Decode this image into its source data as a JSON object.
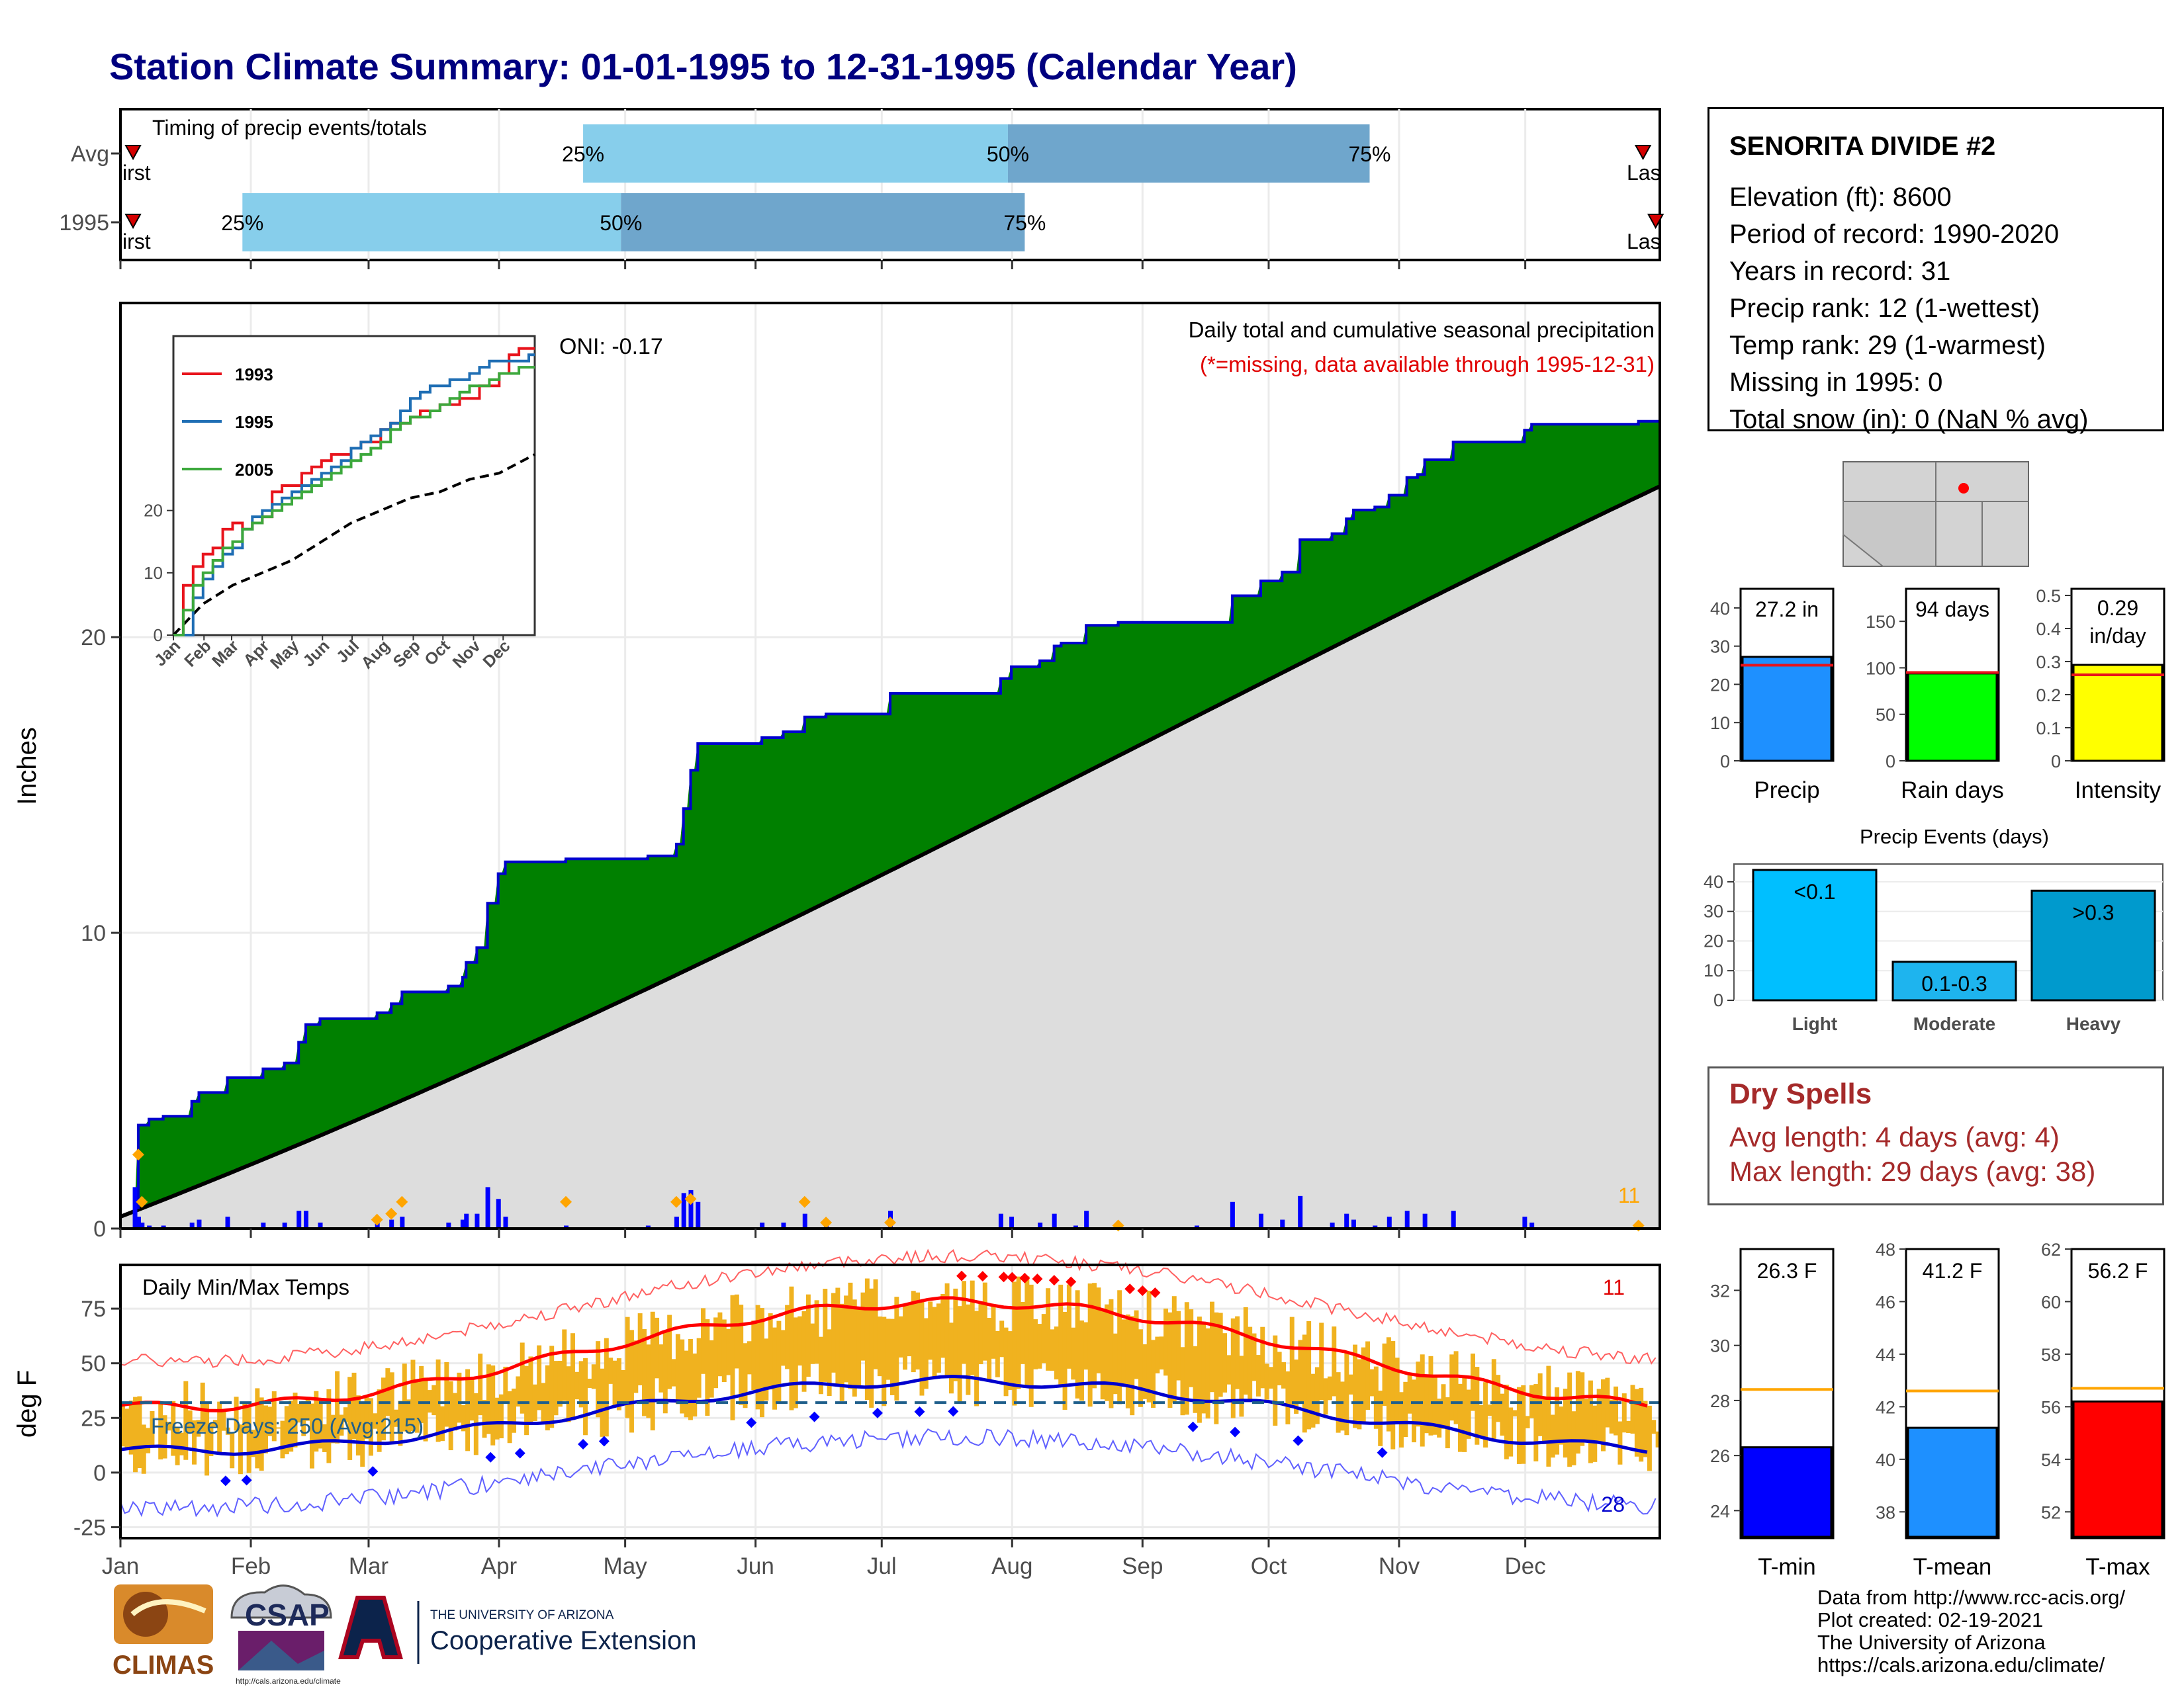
{
  "title": "Station Climate Summary: 01-01-1995 to 12-31-1995 (Calendar Year)",
  "colors": {
    "title": "#00007f",
    "timing_light": "#87ceeb",
    "timing_dark": "#6fa6cc",
    "cum_fill": "#008000",
    "normal_fill": "#dddddd",
    "cum_line": "#0000cd",
    "bar_blue": "#0000ff",
    "orange": "#ffa500",
    "temp_bar": "#f0b21f",
    "tmax_line": "#ff0000",
    "tmin_line": "#0000cd",
    "precip_bar": "#1e90ff",
    "raindays_bar": "#00ff00",
    "intensity_bar": "#ffff00",
    "light_bar": "#00bfff",
    "moderate_bar": "#1eb4ee",
    "heavy_bar": "#009acd",
    "tmin_bar": "#0000ff",
    "tmean_bar": "#1e90ff",
    "tmax_bar": "#ff0000",
    "avg_line_red": "#e8141c",
    "avg_line_orange": "#ffa500",
    "dry_text": "#a52a2a"
  },
  "timing": {
    "label": "Timing of precip events/totals",
    "rows": [
      {
        "label": "Avg",
        "p25": 110,
        "p50": 211,
        "p75": 297,
        "first_label": "First",
        "last_label": "Last",
        "first": 3,
        "last": 362
      },
      {
        "label": "1995",
        "p25": 29,
        "p50": 119,
        "p75": 215,
        "first_label": "First",
        "last_label": "Last",
        "first": 3,
        "last": 365
      }
    ],
    "pct_labels": [
      "25%",
      "50%",
      "75%"
    ]
  },
  "precip_chart": {
    "ylabel": "Inches",
    "yticks": [
      0,
      10,
      20
    ],
    "ylim": [
      0,
      30
    ],
    "oni_label": "ONI: -0.17",
    "subtitle": "Daily total and cumulative seasonal precipitation",
    "missing_note": "(*=missing, data available through 1995-12-31)",
    "corner_count": "11",
    "cumulative_1995": [
      [
        0,
        0
      ],
      [
        4,
        0.7
      ],
      [
        5,
        3.5
      ],
      [
        8,
        3.7
      ],
      [
        12,
        3.8
      ],
      [
        20,
        4.3
      ],
      [
        22,
        4.6
      ],
      [
        28,
        4.6
      ],
      [
        30,
        5.1
      ],
      [
        40,
        5.4
      ],
      [
        46,
        5.6
      ],
      [
        50,
        6.3
      ],
      [
        52,
        6.9
      ],
      [
        56,
        7.1
      ],
      [
        64,
        7.1
      ],
      [
        70,
        7.1
      ],
      [
        72,
        7.3
      ],
      [
        76,
        7.6
      ],
      [
        79,
        8.0
      ],
      [
        92,
        8.2
      ],
      [
        96,
        8.5
      ],
      [
        97,
        9.0
      ],
      [
        100,
        9.5
      ],
      [
        103,
        11.0
      ],
      [
        106,
        12.0
      ],
      [
        108,
        12.4
      ],
      [
        125,
        12.5
      ],
      [
        148,
        12.6
      ],
      [
        155,
        12.6
      ],
      [
        156,
        13.0
      ],
      [
        158,
        14.2
      ],
      [
        160,
        15.5
      ],
      [
        162,
        16.4
      ],
      [
        170,
        16.4
      ],
      [
        180,
        16.6
      ],
      [
        186,
        16.8
      ],
      [
        192,
        17.3
      ],
      [
        198,
        17.4
      ],
      [
        200,
        17.4
      ],
      [
        216,
        18.1
      ],
      [
        244,
        18.1
      ],
      [
        247,
        18.6
      ],
      [
        250,
        19.0
      ],
      [
        258,
        19.2
      ],
      [
        262,
        19.7
      ],
      [
        264,
        19.8
      ],
      [
        268,
        19.8
      ],
      [
        271,
        20.4
      ],
      [
        280,
        20.5
      ],
      [
        302,
        20.5
      ],
      [
        312,
        21.4
      ],
      [
        320,
        21.9
      ],
      [
        326,
        22.2
      ],
      [
        331,
        23.3
      ],
      [
        340,
        23.5
      ],
      [
        344,
        24.0
      ],
      [
        346,
        24.3
      ],
      [
        352,
        24.4
      ],
      [
        356,
        24.8
      ],
      [
        361,
        25.4
      ],
      [
        364,
        25.5
      ],
      [
        366,
        26.0
      ],
      [
        372,
        26.0
      ],
      [
        374,
        26.6
      ],
      [
        378,
        26.6
      ],
      [
        392,
        26.6
      ],
      [
        394,
        27.0
      ],
      [
        396,
        27.2
      ],
      [
        424,
        27.2
      ],
      [
        426,
        27.3
      ],
      [
        432,
        27.3
      ]
    ],
    "normal_start": 0.4,
    "normal_end": 25.1,
    "daily_events": [
      [
        4,
        1.4
      ],
      [
        5,
        0.4
      ],
      [
        6,
        0.2
      ],
      [
        8,
        0.1
      ],
      [
        12,
        0.1
      ],
      [
        20,
        0.2
      ],
      [
        22,
        0.3
      ],
      [
        30,
        0.4
      ],
      [
        40,
        0.2
      ],
      [
        46,
        0.2
      ],
      [
        50,
        0.6
      ],
      [
        52,
        0.6
      ],
      [
        56,
        0.2
      ],
      [
        72,
        0.2
      ],
      [
        76,
        0.3
      ],
      [
        79,
        0.4
      ],
      [
        92,
        0.2
      ],
      [
        96,
        0.3
      ],
      [
        97,
        0.5
      ],
      [
        100,
        0.5
      ],
      [
        103,
        1.4
      ],
      [
        106,
        1.0
      ],
      [
        108,
        0.4
      ],
      [
        125,
        0.1
      ],
      [
        148,
        0.1
      ],
      [
        156,
        0.4
      ],
      [
        158,
        1.2
      ],
      [
        160,
        1.3
      ],
      [
        162,
        0.9
      ],
      [
        180,
        0.2
      ],
      [
        186,
        0.2
      ],
      [
        192,
        0.5
      ],
      [
        198,
        0.1
      ],
      [
        216,
        0.6
      ],
      [
        247,
        0.5
      ],
      [
        250,
        0.4
      ],
      [
        258,
        0.2
      ],
      [
        262,
        0.5
      ],
      [
        268,
        0.1
      ],
      [
        271,
        0.6
      ],
      [
        280,
        0.1
      ],
      [
        302,
        0.1
      ],
      [
        312,
        0.9
      ],
      [
        320,
        0.5
      ],
      [
        326,
        0.3
      ],
      [
        331,
        1.1
      ],
      [
        340,
        0.2
      ],
      [
        344,
        0.5
      ],
      [
        346,
        0.3
      ],
      [
        352,
        0.1
      ],
      [
        356,
        0.4
      ],
      [
        361,
        0.6
      ],
      [
        366,
        0.5
      ],
      [
        374,
        0.6
      ],
      [
        394,
        0.4
      ],
      [
        396,
        0.2
      ],
      [
        426,
        0.1
      ]
    ],
    "orange_markers": [
      [
        5,
        2.5
      ],
      [
        6,
        0.9
      ],
      [
        72,
        0.3
      ],
      [
        76,
        0.5
      ],
      [
        79,
        0.9
      ],
      [
        125,
        0.9
      ],
      [
        156,
        0.9
      ],
      [
        160,
        1.0
      ],
      [
        192,
        0.9
      ],
      [
        198,
        0.2
      ],
      [
        216,
        0.2
      ],
      [
        280,
        0.1
      ],
      [
        426,
        0.1
      ]
    ],
    "inset": {
      "series": [
        {
          "name": "1993",
          "color": "#e8141c",
          "values": [
            [
              0,
              0
            ],
            [
              10,
              8
            ],
            [
              20,
              11
            ],
            [
              30,
              13
            ],
            [
              40,
              14
            ],
            [
              50,
              17
            ],
            [
              60,
              18
            ],
            [
              70,
              17
            ],
            [
              80,
              18
            ],
            [
              90,
              19
            ],
            [
              100,
              23
            ],
            [
              110,
              24
            ],
            [
              120,
              24
            ],
            [
              130,
              26
            ],
            [
              140,
              27
            ],
            [
              150,
              28
            ],
            [
              160,
              29
            ],
            [
              170,
              29
            ],
            [
              180,
              30
            ],
            [
              190,
              31
            ],
            [
              200,
              31
            ],
            [
              210,
              33
            ],
            [
              220,
              34
            ],
            [
              230,
              34
            ],
            [
              240,
              35
            ],
            [
              250,
              36
            ],
            [
              260,
              36
            ],
            [
              270,
              37
            ],
            [
              280,
              37
            ],
            [
              290,
              38
            ],
            [
              300,
              38
            ],
            [
              310,
              40
            ],
            [
              320,
              40
            ],
            [
              330,
              42
            ],
            [
              340,
              45
            ],
            [
              350,
              46
            ],
            [
              360,
              46
            ],
            [
              366,
              46
            ]
          ]
        },
        {
          "name": "1995",
          "color": "#1f6eb4",
          "values": [
            [
              0,
              0
            ],
            [
              20,
              6
            ],
            [
              30,
              9
            ],
            [
              40,
              11
            ],
            [
              50,
              13
            ],
            [
              60,
              14
            ],
            [
              70,
              17
            ],
            [
              80,
              19
            ],
            [
              90,
              20
            ],
            [
              100,
              21
            ],
            [
              110,
              22
            ],
            [
              120,
              23
            ],
            [
              130,
              24
            ],
            [
              140,
              25
            ],
            [
              150,
              26
            ],
            [
              160,
              27
            ],
            [
              170,
              28
            ],
            [
              180,
              30
            ],
            [
              190,
              31
            ],
            [
              200,
              32
            ],
            [
              210,
              33
            ],
            [
              220,
              34
            ],
            [
              230,
              36
            ],
            [
              240,
              38
            ],
            [
              250,
              39
            ],
            [
              260,
              40
            ],
            [
              270,
              40
            ],
            [
              280,
              41
            ],
            [
              290,
              41
            ],
            [
              300,
              42
            ],
            [
              310,
              43
            ],
            [
              320,
              44
            ],
            [
              330,
              44
            ],
            [
              340,
              44
            ],
            [
              350,
              44
            ],
            [
              360,
              45
            ],
            [
              366,
              45
            ]
          ]
        },
        {
          "name": "2005",
          "color": "#3ca83c",
          "values": [
            [
              0,
              0
            ],
            [
              10,
              4
            ],
            [
              20,
              8
            ],
            [
              30,
              10
            ],
            [
              40,
              12
            ],
            [
              50,
              14
            ],
            [
              60,
              15
            ],
            [
              70,
              17
            ],
            [
              80,
              18
            ],
            [
              90,
              19
            ],
            [
              100,
              20
            ],
            [
              110,
              21
            ],
            [
              120,
              22
            ],
            [
              130,
              23
            ],
            [
              140,
              24
            ],
            [
              150,
              25
            ],
            [
              160,
              26
            ],
            [
              170,
              27
            ],
            [
              180,
              28
            ],
            [
              190,
              29
            ],
            [
              200,
              30
            ],
            [
              210,
              31
            ],
            [
              220,
              33
            ],
            [
              230,
              34
            ],
            [
              240,
              35
            ],
            [
              250,
              35
            ],
            [
              260,
              36
            ],
            [
              270,
              37
            ],
            [
              280,
              38
            ],
            [
              290,
              39
            ],
            [
              300,
              40
            ],
            [
              310,
              40
            ],
            [
              320,
              41
            ],
            [
              330,
              42
            ],
            [
              340,
              42
            ],
            [
              350,
              43
            ],
            [
              360,
              43
            ],
            [
              366,
              43
            ]
          ]
        }
      ],
      "normal": [
        [
          0,
          0
        ],
        [
          30,
          5
        ],
        [
          60,
          8
        ],
        [
          90,
          10
        ],
        [
          120,
          12
        ],
        [
          150,
          15
        ],
        [
          180,
          18
        ],
        [
          210,
          20
        ],
        [
          240,
          22
        ],
        [
          270,
          23
        ],
        [
          300,
          25
        ],
        [
          330,
          26
        ],
        [
          366,
          29
        ]
      ],
      "yticks": [
        0,
        10,
        20
      ],
      "ylim": [
        0,
        48
      ],
      "months": [
        "Jan",
        "Feb",
        "Mar",
        "Apr",
        "May",
        "Jun",
        "Jul",
        "Aug",
        "Sep",
        "Oct",
        "Nov",
        "Dec"
      ]
    }
  },
  "temp_chart": {
    "label": "Daily Min/Max Temps",
    "ylabel": "deg F",
    "yticks": [
      -25,
      0,
      25,
      50,
      75
    ],
    "ylim": [
      -30,
      95
    ],
    "freeze_days": "Freeze Days: 250 (Avg:215)",
    "count_top": "11",
    "count_bottom": "28",
    "freeze_line": 32
  },
  "months": [
    "Jan",
    "Feb",
    "Mar",
    "Apr",
    "May",
    "Jun",
    "Jul",
    "Aug",
    "Sep",
    "Oct",
    "Nov",
    "Dec"
  ],
  "station": {
    "name": "SENORITA DIVIDE #2",
    "lines": [
      "Elevation (ft): 8600",
      "Period of record: 1990-2020",
      "Years in record: 31",
      "Precip rank: 12 (1-wettest)",
      "Temp rank: 29 (1-warmest)",
      "Missing in 1995: 0",
      "Total snow (in): 0 (NaN % avg)"
    ]
  },
  "summary_bars": [
    {
      "label": "Precip",
      "value_label": "27.2 in",
      "value": 27.2,
      "avg": 25,
      "yticks": [
        0,
        10,
        20,
        30,
        40
      ],
      "ymax": 45,
      "color": "#1e90ff",
      "avg_color": "#e8141c"
    },
    {
      "label": "Rain days",
      "value_label": "94 days",
      "value": 94,
      "avg": 95,
      "yticks": [
        0,
        50,
        100,
        150
      ],
      "ymax": 185,
      "color": "#00ff00",
      "avg_color": "#e8141c"
    },
    {
      "label": "Intensity",
      "value_label": "0.29 in/day",
      "value": 0.29,
      "avg": 0.26,
      "yticks": [
        0.0,
        0.1,
        0.2,
        0.3,
        0.4,
        0.5
      ],
      "ymax": 0.52,
      "color": "#ffff00",
      "avg_color": "#e8141c"
    }
  ],
  "precip_events": {
    "title": "Precip Events (days)",
    "categories": [
      "Light",
      "Moderate",
      "Heavy"
    ],
    "bar_labels": [
      "<0.1",
      "0.1-0.3",
      ">0.3"
    ],
    "values": [
      44,
      13,
      37
    ],
    "yticks": [
      0,
      10,
      20,
      30,
      40
    ],
    "ymax": 46
  },
  "dry_spells": {
    "title": "Dry Spells",
    "lines": [
      "Avg length: 4 days (avg: 4)",
      "Max length: 29 days (avg: 38)"
    ]
  },
  "temp_bars": [
    {
      "label": "T-min",
      "value_label": "26.3 F",
      "value": 26.3,
      "avg": 28.4,
      "yticks": [
        24,
        26,
        28,
        30,
        32
      ],
      "ymin": 23,
      "ymax": 33.5,
      "color": "#0000ff"
    },
    {
      "label": "T-mean",
      "value_label": "41.2 F",
      "value": 41.2,
      "avg": 42.6,
      "yticks": [
        38,
        40,
        42,
        44,
        46,
        48
      ],
      "ymin": 37,
      "ymax": 48,
      "color": "#1e90ff"
    },
    {
      "label": "T-max",
      "value_label": "56.2 F",
      "value": 56.2,
      "avg": 56.7,
      "yticks": [
        52,
        54,
        56,
        58,
        60,
        62
      ],
      "ymin": 51,
      "ymax": 62,
      "color": "#ff0000"
    }
  ],
  "credits": [
    "Data from http://www.rcc-acis.org/",
    "Plot created: 02-19-2021",
    "The University of Arizona",
    "https://cals.arizona.edu/climate/"
  ],
  "logos": {
    "climas": "CLIMAS",
    "csap": "CSAP",
    "csap_url": "http://cals.arizona.edu/climate",
    "ua_top": "THE UNIVERSITY OF ARIZONA",
    "ua_bottom": "Cooperative Extension"
  }
}
